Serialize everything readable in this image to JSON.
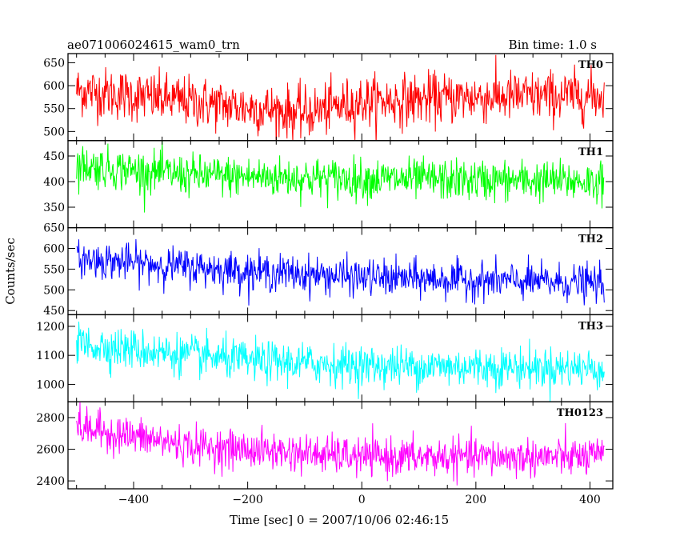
{
  "chart_data": {
    "type": "line",
    "title": "ae071006024615_wam0_trn",
    "subtitle": "Bin time: 1.0 s",
    "xlabel": "Time [sec] 0 = 2007/10/06 02:46:15",
    "ylabel": "Counts/sec",
    "xlim": [
      -515,
      440
    ],
    "xticks": [
      -400,
      -200,
      0,
      200,
      400
    ],
    "grid": false,
    "data_x_range": [
      -500,
      425
    ],
    "panels": [
      {
        "name": "TH0",
        "color": "#ff0000",
        "ylim": [
          480,
          670
        ],
        "yticks": [
          500,
          550,
          600,
          650
        ],
        "trend": [
          {
            "x": -500,
            "y": 590
          },
          {
            "x": -300,
            "y": 565
          },
          {
            "x": -100,
            "y": 540
          },
          {
            "x": 0,
            "y": 565
          },
          {
            "x": 200,
            "y": 575
          },
          {
            "x": 425,
            "y": 578
          }
        ],
        "noise": 28
      },
      {
        "name": "TH1",
        "color": "#00ff00",
        "ylim": [
          310,
          480
        ],
        "yticks": [
          350,
          400,
          450
        ],
        "trend": [
          {
            "x": -500,
            "y": 432
          },
          {
            "x": -300,
            "y": 412
          },
          {
            "x": 0,
            "y": 405
          },
          {
            "x": 425,
            "y": 400
          }
        ],
        "noise": 20
      },
      {
        "name": "TH2",
        "color": "#0000ff",
        "ylim": [
          440,
          650
        ],
        "yticks": [
          450,
          500,
          550,
          600,
          650
        ],
        "trend": [
          {
            "x": -500,
            "y": 575
          },
          {
            "x": -200,
            "y": 545
          },
          {
            "x": 0,
            "y": 530
          },
          {
            "x": 425,
            "y": 515
          }
        ],
        "noise": 22
      },
      {
        "name": "TH3",
        "color": "#00ffff",
        "ylim": [
          940,
          1240
        ],
        "yticks": [
          1000,
          1100,
          1200
        ],
        "trend": [
          {
            "x": -500,
            "y": 1140
          },
          {
            "x": -200,
            "y": 1080
          },
          {
            "x": 0,
            "y": 1065
          },
          {
            "x": 425,
            "y": 1055
          }
        ],
        "noise": 35
      },
      {
        "name": "TH0123",
        "color": "#ff00ff",
        "ylim": [
          2350,
          2900
        ],
        "yticks": [
          2400,
          2600,
          2800
        ],
        "trend": [
          {
            "x": -500,
            "y": 2740
          },
          {
            "x": -300,
            "y": 2620
          },
          {
            "x": 0,
            "y": 2550
          },
          {
            "x": 425,
            "y": 2550
          }
        ],
        "noise": 60
      }
    ]
  }
}
